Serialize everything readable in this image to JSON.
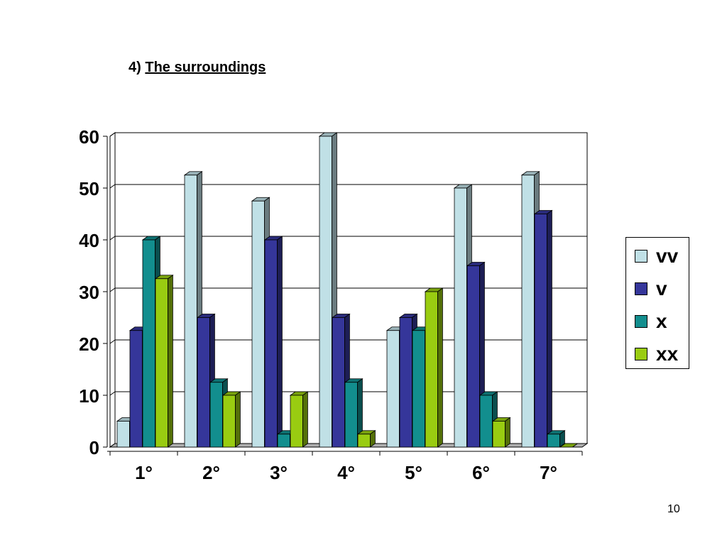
{
  "slide": {
    "title_prefix": "4)",
    "title_main": "The surroundings",
    "page_number": "10"
  },
  "chart_data": {
    "type": "bar",
    "style": "3d-clustered-column",
    "categories": [
      "1°",
      "2°",
      "3°",
      "4°",
      "5°",
      "6°",
      "7°"
    ],
    "series": [
      {
        "name": "vv",
        "color": "#c0e0e6",
        "values": [
          5,
          52.5,
          47.5,
          60,
          22.5,
          50,
          52.5
        ]
      },
      {
        "name": "v",
        "color": "#35369a",
        "values": [
          22.5,
          25,
          40,
          25,
          25,
          35,
          45
        ]
      },
      {
        "name": "x",
        "color": "#128e8e",
        "values": [
          40,
          12.5,
          2.5,
          12.5,
          22.5,
          10,
          2.5
        ]
      },
      {
        "name": "xx",
        "color": "#99cc11",
        "values": [
          32.5,
          10,
          10,
          2.5,
          30,
          5,
          0
        ]
      }
    ],
    "yticks": [
      0,
      10,
      20,
      30,
      40,
      50,
      60
    ],
    "ylim": [
      0,
      60
    ],
    "grid": true,
    "legend_position": "right",
    "title": "",
    "xlabel": "",
    "ylabel": ""
  }
}
